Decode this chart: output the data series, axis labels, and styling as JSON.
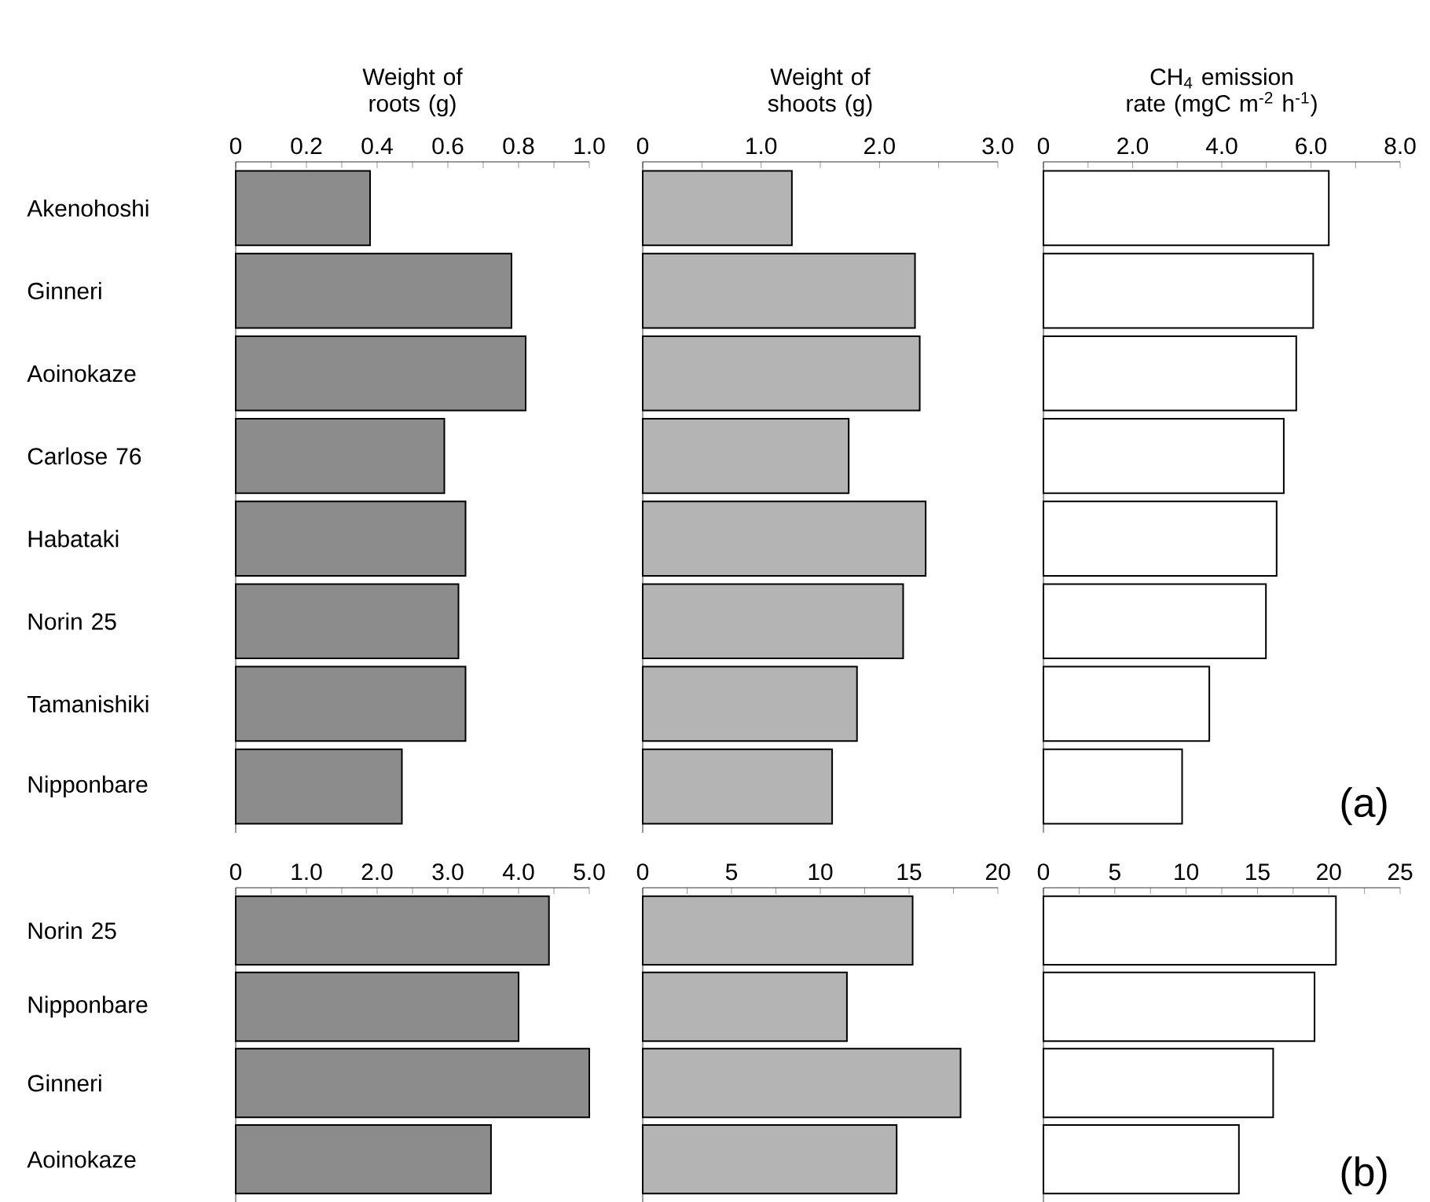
{
  "chart_data": [
    {
      "type": "bar",
      "orientation": "horizontal",
      "xlabel": "Weight of roots (g)",
      "categories": [
        "Akenohoshi",
        "Ginneri",
        "Aoinokaze",
        "Carlose 76",
        "Habataki",
        "Norin 25",
        "Tamanishiki",
        "Nipponbare"
      ],
      "values": [
        0.38,
        0.78,
        0.82,
        0.59,
        0.65,
        0.63,
        0.65,
        0.47
      ],
      "color": "#8c8c8c",
      "xlim": [
        0,
        1
      ],
      "xticks": [
        0,
        {
          "value": 0.1,
          "label": null
        },
        0.2,
        {
          "value": 0.3,
          "label": null
        },
        0.4,
        {
          "value": 0.5,
          "label": null
        },
        0.6,
        {
          "value": 0.7,
          "label": null
        },
        0.8,
        {
          "value": 0.9,
          "label": null
        },
        {
          "value": 1,
          "label": "1.0"
        }
      ]
    },
    {
      "type": "bar",
      "orientation": "horizontal",
      "xlabel": "Weight of shoots (g)",
      "categories": [
        null,
        null,
        null,
        null,
        null,
        null,
        null,
        null
      ],
      "values": [
        1.26,
        2.3,
        2.34,
        1.74,
        2.39,
        2.2,
        1.81,
        1.6
      ],
      "color": "#b4b4b4",
      "xlim": [
        0,
        3
      ],
      "xticks": [
        0,
        {
          "value": 0.5,
          "label": null
        },
        {
          "value": 1,
          "label": "1.0"
        },
        {
          "value": 1.5,
          "label": null
        },
        {
          "value": 2,
          "label": "2.0"
        },
        {
          "value": 2.5,
          "label": null
        },
        {
          "value": 3,
          "label": "3.0"
        }
      ]
    },
    {
      "type": "bar",
      "orientation": "horizontal",
      "xlabel": "CH$_{4}$ emission rate (mgC m$^{-2}$ h$^{-1}$)",
      "categories": [
        null,
        null,
        null,
        null,
        null,
        null,
        null,
        null
      ],
      "values": [
        6.4,
        6.05,
        5.67,
        5.39,
        5.23,
        4.99,
        3.72,
        3.11
      ],
      "color": "#ffffff",
      "xlim": [
        0,
        8
      ],
      "annotations": [
        "(a)"
      ],
      "xticks": [
        0,
        {
          "value": 1,
          "label": null
        },
        {
          "value": 2,
          "label": "2.0"
        },
        {
          "value": 3,
          "label": null
        },
        {
          "value": 4,
          "label": "4.0"
        },
        {
          "value": 5,
          "label": null
        },
        {
          "value": 6,
          "label": "6.0"
        },
        {
          "value": 7,
          "label": null
        },
        {
          "value": 8,
          "label": "8.0"
        }
      ]
    },
    {
      "type": "bar",
      "orientation": "horizontal",
      "categories": [
        "Norin 25",
        "Nipponbare",
        "Ginneri",
        "Aoinokaze"
      ],
      "values": [
        4.43,
        4.0,
        5.0,
        3.61
      ],
      "color": "#8c8c8c",
      "xlim": [
        0,
        5
      ],
      "xticks": [
        0,
        {
          "value": 0.5,
          "label": null
        },
        {
          "value": 1,
          "label": "1.0"
        },
        {
          "value": 1.5,
          "label": null
        },
        {
          "value": 2,
          "label": "2.0"
        },
        {
          "value": 2.5,
          "label": null
        },
        {
          "value": 3,
          "label": "3.0"
        },
        {
          "value": 3.5,
          "label": null
        },
        {
          "value": 4,
          "label": "4.0"
        },
        {
          "value": 4.5,
          "label": null
        },
        {
          "value": 5,
          "label": "5.0"
        }
      ]
    },
    {
      "type": "bar",
      "orientation": "horizontal",
      "categories": [
        null,
        null,
        null,
        null
      ],
      "values": [
        15.2,
        11.5,
        17.9,
        14.3
      ],
      "color": "#b4b4b4",
      "xlim": [
        0,
        20
      ],
      "xticks": [
        0,
        {
          "value": 2.5,
          "label": null
        },
        5,
        {
          "value": 7.5,
          "label": null
        },
        10,
        {
          "value": 12.5,
          "label": null
        },
        15,
        {
          "value": 17.5,
          "label": null
        },
        20
      ]
    },
    {
      "type": "bar",
      "orientation": "horizontal",
      "categories": [
        null,
        null,
        null,
        null
      ],
      "values": [
        20.5,
        19.0,
        16.1,
        13.7
      ],
      "color": "#ffffff",
      "xlim": [
        0,
        25
      ],
      "annotations": [
        "(b)"
      ],
      "xticks": [
        0,
        {
          "value": 2.5,
          "label": null
        },
        5,
        {
          "value": 7.5,
          "label": null
        },
        10,
        {
          "value": 12.5,
          "label": null
        },
        15,
        {
          "value": 17.5,
          "label": null
        },
        20,
        {
          "value": 22.5,
          "label": null
        },
        25
      ]
    }
  ]
}
